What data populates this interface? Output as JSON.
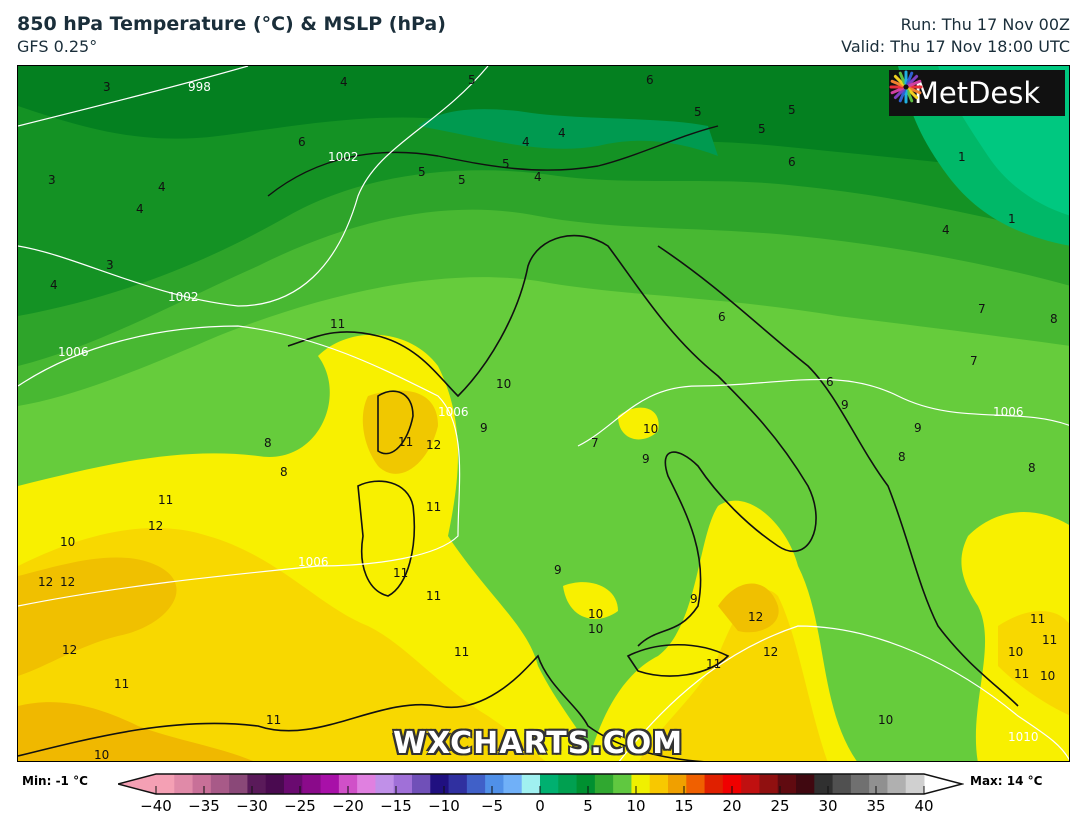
{
  "header": {
    "title": "850 hPa Temperature (°C) & MSLP (hPa)",
    "model": "GFS 0.25°",
    "run": "Run: Thu 17 Nov 00Z",
    "valid": "Valid: Thu 17 Nov 18:00 UTC"
  },
  "logo": {
    "text": "MetDesk",
    "icon": "starburst-logo-icon"
  },
  "watermark": "WXCHARTS.COM",
  "colorbar": {
    "min_label": "Min: -1 °C",
    "max_label": "Max: 14 °C",
    "ticks": [
      "−40",
      "−35",
      "−30",
      "−25",
      "−20",
      "−15",
      "−10",
      "−5",
      "0",
      "5",
      "10",
      "15",
      "20",
      "25",
      "30",
      "35",
      "40"
    ],
    "range": [
      -40,
      40
    ],
    "colors": [
      "#f4a0b4",
      "#e08aa8",
      "#c87098",
      "#a85a88",
      "#8a4878",
      "#5a1a5a",
      "#4a0a50",
      "#6a0a70",
      "#8a0a8a",
      "#a810a8",
      "#d050c8",
      "#e080e0",
      "#c090e8",
      "#a070d8",
      "#7050b8",
      "#201080",
      "#3030a0",
      "#4060c8",
      "#5090e8",
      "#70b0f8",
      "#a0f0f0",
      "#00b070",
      "#00a050",
      "#009030",
      "#30a830",
      "#60c840",
      "#f0f000",
      "#f8c800",
      "#f0a000",
      "#f06000",
      "#e02000",
      "#f00000",
      "#c01010",
      "#901010",
      "#600a10",
      "#400810",
      "#303030",
      "#505050",
      "#707070",
      "#909090",
      "#b0b0b0",
      "#d0d0d0"
    ]
  },
  "map": {
    "temperature_labels": [
      "3",
      "3",
      "4",
      "4",
      "3",
      "4",
      "4",
      "5",
      "6",
      "5",
      "5",
      "5",
      "4",
      "4",
      "5",
      "6",
      "6",
      "5",
      "5",
      "4",
      "1",
      "1",
      "4",
      "7",
      "8",
      "11",
      "10",
      "8",
      "12",
      "11",
      "11",
      "12",
      "11",
      "10",
      "11",
      "10",
      "9",
      "9",
      "7",
      "10",
      "9",
      "12",
      "11",
      "12",
      "12",
      "11",
      "11",
      "12",
      "11",
      "10",
      "9",
      "10",
      "11",
      "11",
      "10",
      "6",
      "6",
      "9",
      "8",
      "7",
      "8",
      "9",
      "11",
      "11",
      "10",
      "10",
      "12",
      "8"
    ],
    "isobar_labels": [
      "998",
      "1002",
      "1002",
      "1006",
      "1006",
      "1006",
      "1006",
      "1010"
    ]
  }
}
